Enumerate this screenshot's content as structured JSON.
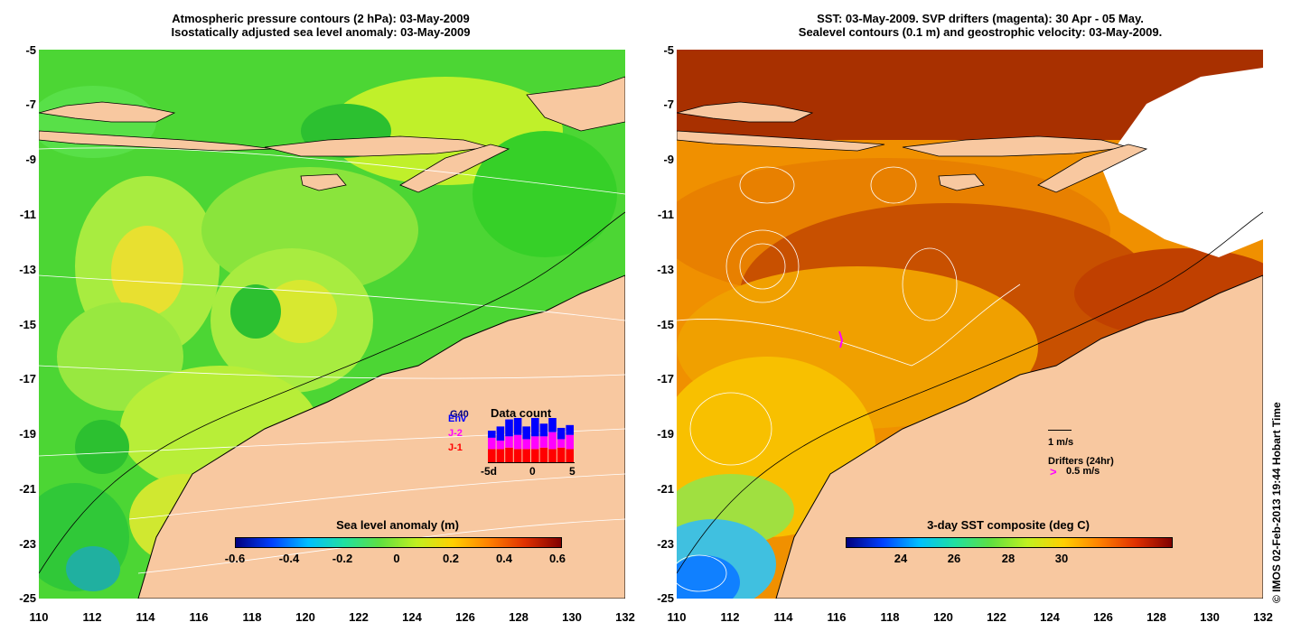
{
  "left_panel": {
    "title_line1": "Atmospheric pressure contours (2 hPa): 03-May-2009",
    "title_line2": "Isostatically adjusted sea level anomaly: 03-May-2009",
    "colorbar": {
      "title": "Sea level anomaly (m)",
      "ticks": [
        "-0.6",
        "-0.4",
        "-0.2",
        "0",
        "0.2",
        "0.4",
        "0.6"
      ],
      "colors": [
        "#00007f",
        "#0040ff",
        "#00bfff",
        "#20e0a0",
        "#60e040",
        "#c0f020",
        "#ffd000",
        "#ff8000",
        "#e03000",
        "#800000"
      ]
    },
    "data_count": {
      "title": "Data count",
      "legend": [
        {
          "label": "G40",
          "color": "#000080"
        },
        {
          "label": "Env",
          "color": "#0000ff"
        },
        {
          "label": "J-2",
          "color": "#ff00ff"
        },
        {
          "label": "J-1",
          "color": "#ff0000"
        }
      ],
      "x_ticks": [
        "-5d",
        "0",
        "5"
      ],
      "bars": [
        {
          "j1": 10,
          "j2": 8,
          "env": 5
        },
        {
          "j1": 10,
          "j2": 6,
          "env": 10
        },
        {
          "j1": 11,
          "j2": 8,
          "env": 12
        },
        {
          "j1": 10,
          "j2": 10,
          "env": 14
        },
        {
          "j1": 10,
          "j2": 7,
          "env": 9
        },
        {
          "j1": 10,
          "j2": 9,
          "env": 13
        },
        {
          "j1": 11,
          "j2": 8,
          "env": 9
        },
        {
          "j1": 10,
          "j2": 12,
          "env": 12
        },
        {
          "j1": 11,
          "j2": 6,
          "env": 8
        },
        {
          "j1": 10,
          "j2": 10,
          "env": 7
        }
      ]
    }
  },
  "right_panel": {
    "title_line1": "SST: 03-May-2009. SVP drifters (magenta): 30 Apr - 05 May.",
    "title_line2": "Sealevel contours (0.1 m) and geostrophic velocity: 03-May-2009.",
    "colorbar": {
      "title": "3-day SST composite (deg C)",
      "ticks": [
        "24",
        "26",
        "28",
        "30"
      ],
      "colors": [
        "#00007f",
        "#0040ff",
        "#00bfff",
        "#20e0a0",
        "#60e040",
        "#c0f020",
        "#ffd000",
        "#ff8000",
        "#e03000",
        "#800000"
      ]
    },
    "scale_label": "1 m/s",
    "drifters_label": "Drifters (24hr)",
    "drifters_scale": "0.5 m/s"
  },
  "axes": {
    "y_ticks": [
      "-5",
      "-7",
      "-9",
      "-11",
      "-13",
      "-15",
      "-17",
      "-19",
      "-21",
      "-23",
      "-25"
    ],
    "x_ticks": [
      "110",
      "112",
      "114",
      "116",
      "118",
      "120",
      "122",
      "124",
      "126",
      "128",
      "130",
      "132"
    ]
  },
  "credit": "© IMOS 02-Feb-2013 19:44 Hobart Time",
  "colors": {
    "land": "#f8c8a0",
    "sla_green": "#40dc30",
    "sla_yellow": "#c8f028",
    "sst_orange": "#f08a00",
    "sst_red": "#b03000"
  }
}
